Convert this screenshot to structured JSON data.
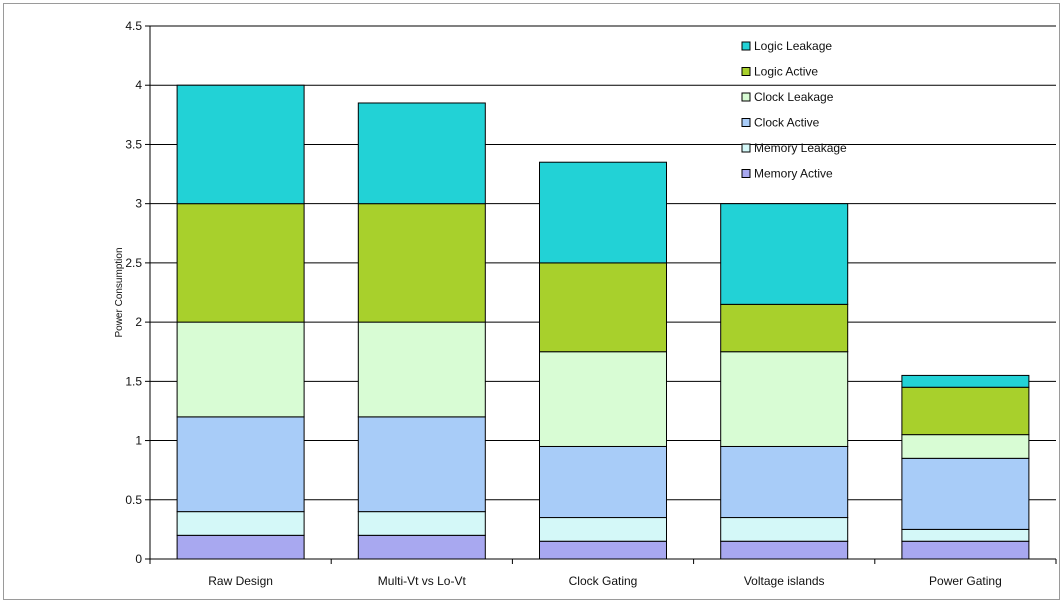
{
  "chart_data": {
    "type": "bar",
    "stacked": true,
    "title": "",
    "xlabel": "",
    "ylabel": "Power Consumption",
    "ylim": [
      0,
      4.5
    ],
    "yticks": [
      0,
      0.5,
      1,
      1.5,
      2,
      2.5,
      3,
      3.5,
      4,
      4.5
    ],
    "grid": true,
    "legend_position": "top-right",
    "categories": [
      "Raw Design",
      "Multi-Vt vs Lo-Vt",
      "Clock Gating",
      "Voltage islands",
      "Power Gating"
    ],
    "series": [
      {
        "name": "Memory Active",
        "color": "#a8a8f0",
        "values": [
          0.2,
          0.2,
          0.15,
          0.15,
          0.15
        ]
      },
      {
        "name": "Memory Leakage",
        "color": "#d4f8f8",
        "values": [
          0.2,
          0.2,
          0.2,
          0.2,
          0.1
        ]
      },
      {
        "name": "Clock Active",
        "color": "#a8ccf8",
        "values": [
          0.8,
          0.8,
          0.6,
          0.6,
          0.6
        ]
      },
      {
        "name": "Clock Leakage",
        "color": "#d8fcd4",
        "values": [
          0.8,
          0.8,
          0.8,
          0.8,
          0.2
        ]
      },
      {
        "name": "Logic Active",
        "color": "#a8d02c",
        "values": [
          1.0,
          1.0,
          0.75,
          0.4,
          0.4
        ]
      },
      {
        "name": "Logic Leakage",
        "color": "#22d2d6",
        "values": [
          1.0,
          0.85,
          0.85,
          0.85,
          0.1
        ]
      }
    ],
    "legend_order": [
      "Logic Leakage",
      "Logic Active",
      "Clock Leakage",
      "Clock Active",
      "Memory Leakage",
      "Memory Active"
    ]
  }
}
